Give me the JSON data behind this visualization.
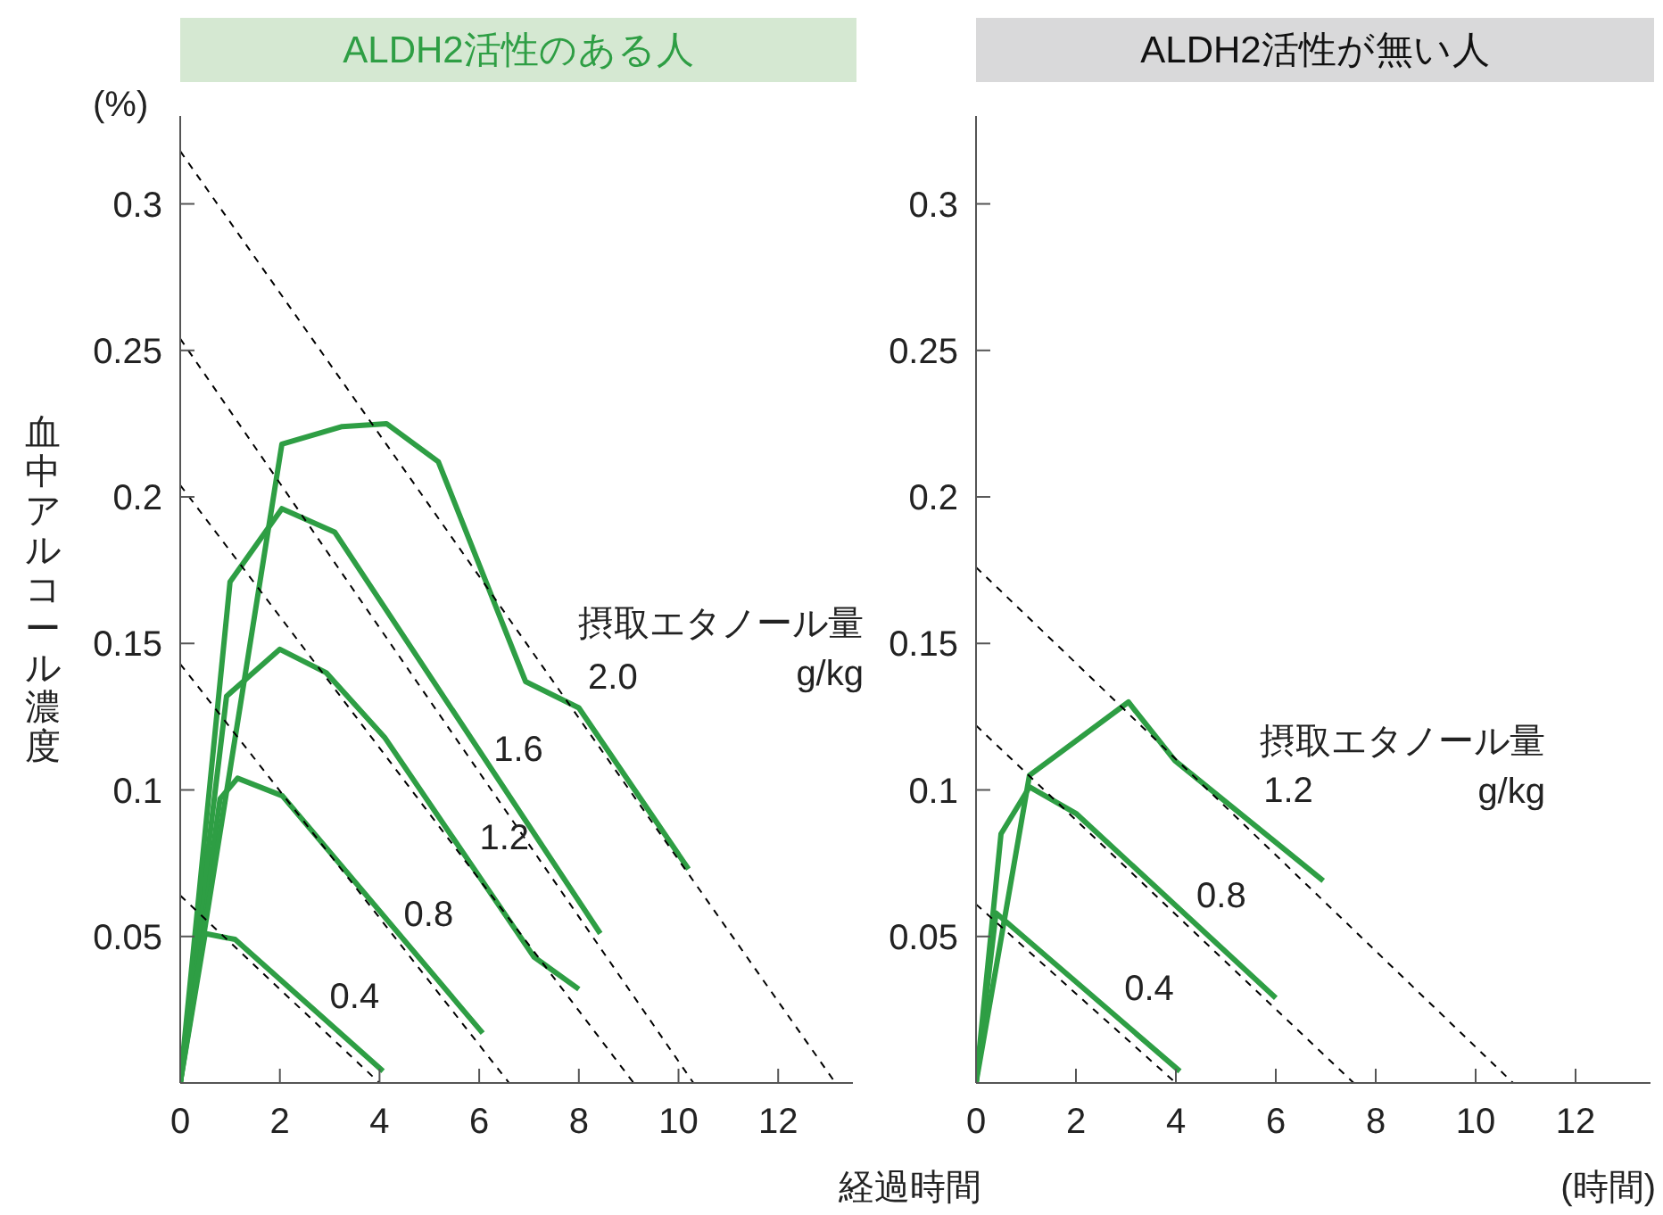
{
  "chart_data": [
    {
      "type": "line",
      "title": "ALDH2活性のある人",
      "xlabel": "経過時間",
      "ylabel": "血中アルコール濃度",
      "annotations": [
        "(%)",
        "摂取エタノール量",
        "g/kg"
      ],
      "xlim": [
        0,
        13.5
      ],
      "ylim": [
        0,
        0.33
      ],
      "xticks": [
        0,
        2,
        4,
        6,
        8,
        10,
        12
      ],
      "yticks": [
        0.05,
        0.1,
        0.15,
        0.2,
        0.25,
        0.3
      ],
      "grid": false,
      "legend": false,
      "marker": "none",
      "line_style": "solid",
      "series": [
        {
          "name": "0.4",
          "color": "#2e9e44",
          "x": [
            0,
            0.5,
            1.1,
            4.07
          ],
          "values": [
            0,
            0.051,
            0.049,
            0.004
          ]
        },
        {
          "name": "0.8",
          "color": "#2e9e44",
          "x": [
            0,
            0.8,
            1.15,
            2.05,
            6.07
          ],
          "values": [
            0,
            0.097,
            0.104,
            0.098,
            0.017
          ]
        },
        {
          "name": "1.2",
          "color": "#2e9e44",
          "x": [
            0,
            0.93,
            2.0,
            2.93,
            4.1,
            7.1,
            8.0
          ],
          "values": [
            0,
            0.132,
            0.148,
            0.14,
            0.118,
            0.043,
            0.032
          ]
        },
        {
          "name": "1.6",
          "color": "#2e9e44",
          "x": [
            0,
            1.0,
            2.04,
            3.1,
            8.43
          ],
          "values": [
            0,
            0.171,
            0.196,
            0.188,
            0.051
          ]
        },
        {
          "name": "2.0",
          "color": "#2e9e44",
          "x": [
            0,
            2.04,
            3.25,
            4.14,
            5.18,
            6.93,
            8.0,
            10.2
          ],
          "values": [
            0,
            0.218,
            0.224,
            0.225,
            0.212,
            0.137,
            0.128,
            0.073
          ]
        },
        {
          "color": "#000000",
          "line_style": "dashed",
          "x": [
            0,
            4.0
          ],
          "values": [
            0.064,
            0
          ]
        },
        {
          "color": "#000000",
          "line_style": "dashed",
          "x": [
            0,
            6.6
          ],
          "values": [
            0.143,
            0
          ]
        },
        {
          "color": "#000000",
          "line_style": "dashed",
          "x": [
            0,
            9.1
          ],
          "values": [
            0.204,
            0
          ]
        },
        {
          "color": "#000000",
          "line_style": "dashed",
          "x": [
            0,
            10.3
          ],
          "values": [
            0.254,
            0
          ]
        },
        {
          "color": "#000000",
          "line_style": "dashed",
          "x": [
            0,
            13.15
          ],
          "values": [
            0.318,
            0
          ]
        }
      ]
    },
    {
      "type": "line",
      "title": "ALDH2活性が無い人",
      "annotations": [
        "摂取エタノール量",
        "g/kg",
        "(時間)"
      ],
      "xlim": [
        0,
        13.5
      ],
      "ylim": [
        0,
        0.33
      ],
      "xticks": [
        0,
        2,
        4,
        6,
        8,
        10,
        12
      ],
      "yticks": [
        0.05,
        0.1,
        0.15,
        0.2,
        0.25,
        0.3
      ],
      "grid": false,
      "legend": false,
      "marker": "none",
      "line_style": "solid",
      "series": [
        {
          "name": "0.4",
          "color": "#2e9e44",
          "x": [
            0,
            0.4,
            4.08
          ],
          "values": [
            0,
            0.058,
            0.004
          ]
        },
        {
          "name": "0.8",
          "color": "#2e9e44",
          "x": [
            0,
            0.5,
            1.07,
            2.0,
            6.0
          ],
          "values": [
            0,
            0.085,
            0.101,
            0.092,
            0.029
          ]
        },
        {
          "name": "1.2",
          "color": "#2e9e44",
          "x": [
            0,
            1.07,
            3.05,
            3.98,
            6.95
          ],
          "values": [
            0,
            0.105,
            0.13,
            0.11,
            0.069
          ]
        },
        {
          "color": "#000000",
          "line_style": "dashed",
          "x": [
            0,
            4.0
          ],
          "values": [
            0.061,
            0
          ]
        },
        {
          "color": "#000000",
          "line_style": "dashed",
          "x": [
            0,
            7.56
          ],
          "values": [
            0.122,
            0
          ]
        },
        {
          "color": "#000000",
          "line_style": "dashed",
          "x": [
            0,
            10.75
          ],
          "values": [
            0.176,
            0
          ]
        }
      ]
    }
  ]
}
